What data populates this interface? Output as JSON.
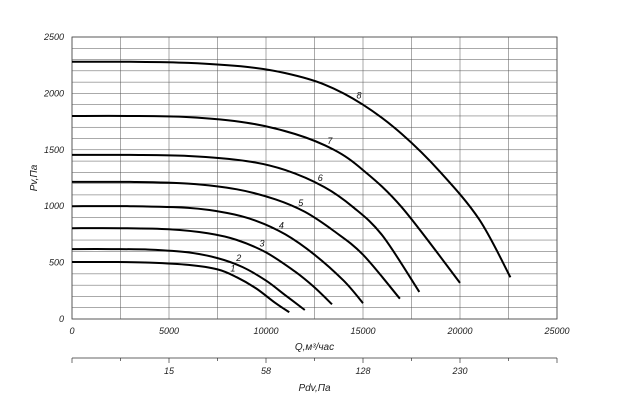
{
  "chart_data": {
    "type": "line",
    "xlabel": "Q,м³/час",
    "ylabel": "Pv,Па",
    "xlim": [
      0,
      25000
    ],
    "ylim": [
      0,
      2500
    ],
    "x_ticks": [
      "0",
      "5000",
      "10000",
      "15000",
      "20000",
      "25000"
    ],
    "y_ticks": [
      "0",
      "500",
      "1000",
      "1500",
      "2000",
      "2500"
    ],
    "grid": true,
    "secondary_axis": {
      "label": "Pdv,Па",
      "ticks": [
        {
          "label": "15",
          "q": 5000
        },
        {
          "label": "58",
          "q": 10000
        },
        {
          "label": "128",
          "q": 15000
        },
        {
          "label": "230",
          "q": 20000
        }
      ]
    },
    "series": [
      {
        "name": "1",
        "x": [
          0,
          2000,
          4000,
          6000,
          7500,
          8500,
          9500,
          10500,
          11200
        ],
        "y": [
          505,
          505,
          500,
          480,
          440,
          370,
          270,
          140,
          60
        ]
      },
      {
        "name": "2",
        "x": [
          0,
          2000,
          4000,
          6000,
          7500,
          8800,
          10000,
          11000,
          12000
        ],
        "y": [
          620,
          620,
          615,
          590,
          540,
          460,
          340,
          210,
          80
        ]
      },
      {
        "name": "3",
        "x": [
          0,
          2500,
          5000,
          7000,
          8500,
          10000,
          11500,
          12500,
          13400
        ],
        "y": [
          805,
          805,
          795,
          760,
          700,
          590,
          420,
          280,
          130
        ]
      },
      {
        "name": "4",
        "x": [
          0,
          3000,
          6000,
          8000,
          9500,
          11000,
          12500,
          14000,
          15000
        ],
        "y": [
          1000,
          1000,
          985,
          940,
          870,
          750,
          570,
          340,
          140
        ]
      },
      {
        "name": "5",
        "x": [
          0,
          3000,
          6000,
          8500,
          10500,
          12000,
          13500,
          15000,
          16900
        ],
        "y": [
          1215,
          1215,
          1200,
          1150,
          1060,
          950,
          780,
          570,
          180
        ]
      },
      {
        "name": "6",
        "x": [
          0,
          3000,
          6000,
          9000,
          11000,
          13000,
          14500,
          16000,
          17900
        ],
        "y": [
          1455,
          1455,
          1445,
          1400,
          1320,
          1170,
          990,
          740,
          240
        ]
      },
      {
        "name": "7",
        "x": [
          0,
          3000,
          6000,
          9000,
          11500,
          13500,
          15000,
          17000,
          20000
        ],
        "y": [
          1800,
          1800,
          1790,
          1740,
          1640,
          1500,
          1320,
          990,
          320
        ]
      },
      {
        "name": "8",
        "x": [
          0,
          3000,
          6000,
          9000,
          11000,
          13000,
          15000,
          17000,
          19000,
          21000,
          22600
        ],
        "y": [
          2280,
          2280,
          2270,
          2235,
          2180,
          2080,
          1900,
          1640,
          1300,
          880,
          370
        ]
      }
    ]
  }
}
